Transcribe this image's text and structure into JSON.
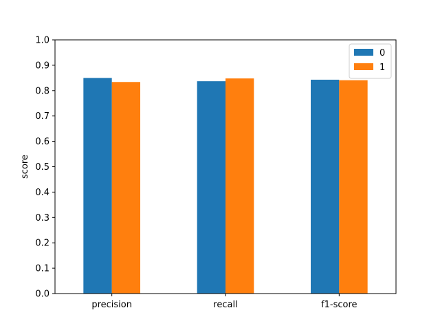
{
  "chart_data": {
    "type": "bar",
    "categories": [
      "precision",
      "recall",
      "f1-score"
    ],
    "series": [
      {
        "name": "0",
        "color": "#1f77b4",
        "values": [
          0.85,
          0.837,
          0.843
        ]
      },
      {
        "name": "1",
        "color": "#ff7f0e",
        "values": [
          0.834,
          0.848,
          0.841
        ]
      }
    ],
    "title": "",
    "xlabel": "",
    "ylabel": "score",
    "ylim": [
      0,
      1.0
    ],
    "yticks": [
      "0.0",
      "0.1",
      "0.2",
      "0.3",
      "0.4",
      "0.5",
      "0.6",
      "0.7",
      "0.8",
      "0.9",
      "1.0"
    ],
    "grid": false,
    "legend": "top-right"
  }
}
